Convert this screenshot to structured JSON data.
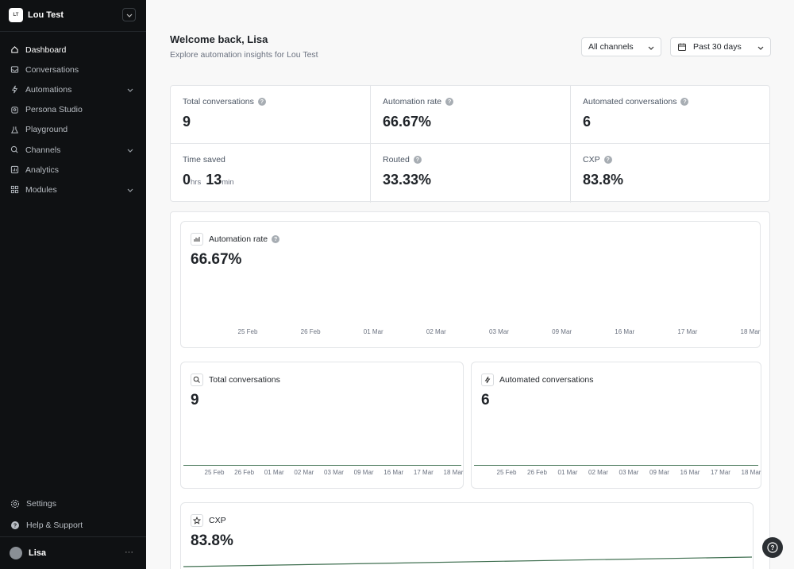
{
  "workspace": {
    "initials": "LT",
    "name": "Lou Test"
  },
  "nav": [
    {
      "label": "Dashboard",
      "icon": "home-icon",
      "active": true
    },
    {
      "label": "Conversations",
      "icon": "inbox-icon"
    },
    {
      "label": "Automations",
      "icon": "bolt-icon",
      "expandable": true
    },
    {
      "label": "Persona Studio",
      "icon": "persona-icon"
    },
    {
      "label": "Playground",
      "icon": "flask-icon"
    },
    {
      "label": "Channels",
      "icon": "chat-icon",
      "expandable": true
    },
    {
      "label": "Analytics",
      "icon": "chart-icon"
    },
    {
      "label": "Modules",
      "icon": "modules-icon",
      "expandable": true
    }
  ],
  "bottom_nav": [
    {
      "label": "Settings",
      "icon": "gear-icon"
    },
    {
      "label": "Help & Support",
      "icon": "help-icon"
    }
  ],
  "user": {
    "name": "Lisa",
    "more": "···"
  },
  "header": {
    "welcome": "Welcome back, Lisa",
    "subtitle": "Explore automation insights for Lou Test",
    "channel_filter": "All channels",
    "date_filter": "Past 30 days"
  },
  "kpis": {
    "total_conversations": {
      "label": "Total conversations",
      "value": "9"
    },
    "automation_rate": {
      "label": "Automation rate",
      "value": "66.67%"
    },
    "automated_conversations": {
      "label": "Automated conversations",
      "value": "6"
    },
    "time_saved": {
      "label": "Time saved",
      "hours": "0",
      "hours_unit": "hrs",
      "minutes": "13",
      "minutes_unit": "min"
    },
    "routed": {
      "label": "Routed",
      "value": "33.33%"
    },
    "cxp": {
      "label": "CXP",
      "value": "83.8%"
    }
  },
  "charts": {
    "automation_rate": {
      "title": "Automation rate",
      "value": "66.67%"
    },
    "total_conversations": {
      "title": "Total conversations",
      "value": "9"
    },
    "automated_conversations": {
      "title": "Automated conversations",
      "value": "6"
    },
    "cxp": {
      "title": "CXP",
      "value": "83.8%"
    }
  },
  "chart_data": [
    {
      "type": "line",
      "title": "Automation rate",
      "x": [
        "25 Feb",
        "26 Feb",
        "01 Mar",
        "02 Mar",
        "03 Mar",
        "09 Mar",
        "16 Mar",
        "17 Mar",
        "18 Mar"
      ]
    },
    {
      "type": "line",
      "title": "Total conversations",
      "x": [
        "25 Feb",
        "26 Feb",
        "01 Mar",
        "02 Mar",
        "03 Mar",
        "09 Mar",
        "16 Mar",
        "17 Mar",
        "18 Mar"
      ]
    },
    {
      "type": "line",
      "title": "Automated conversations",
      "x": [
        "25 Feb",
        "26 Feb",
        "01 Mar",
        "02 Mar",
        "03 Mar",
        "09 Mar",
        "16 Mar",
        "17 Mar",
        "18 Mar"
      ]
    },
    {
      "type": "line",
      "title": "CXP"
    }
  ],
  "colors": {
    "sidebar_bg": "#0f1113",
    "line": "#3f6f50"
  }
}
